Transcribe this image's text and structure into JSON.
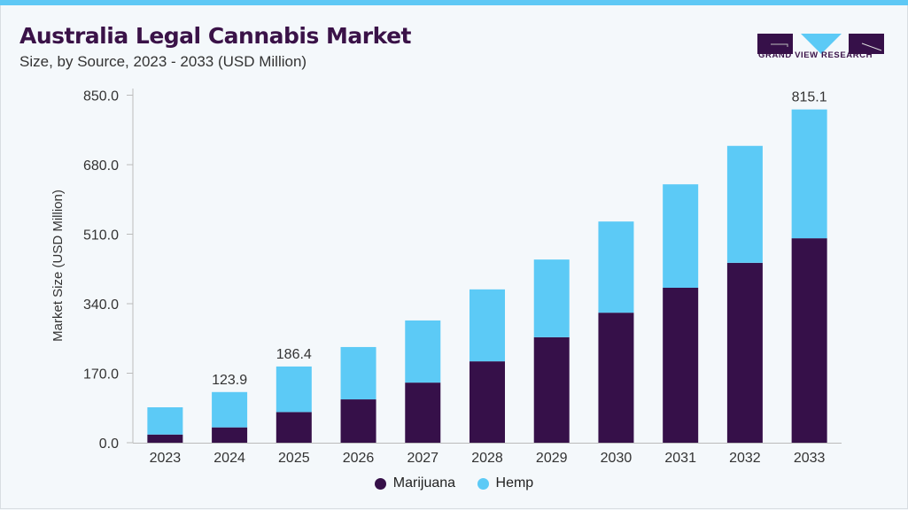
{
  "title": "Australia Legal Cannabis Market",
  "subtitle": "Size, by Source, 2023 - 2033 (USD Million)",
  "logo_text": "GRAND VIEW RESEARCH",
  "colors": {
    "marijuana": "#361049",
    "hemp": "#5ccaf6",
    "title": "#3a1248",
    "accent": "#5ec8f5"
  },
  "chart_data": {
    "type": "bar",
    "stacked": true,
    "categories": [
      "2023",
      "2024",
      "2025",
      "2026",
      "2027",
      "2028",
      "2029",
      "2030",
      "2031",
      "2032",
      "2033"
    ],
    "series": [
      {
        "name": "Marijuana",
        "values": [
          20,
          37.5,
          75,
          106,
          147,
          199,
          258,
          318,
          379,
          440,
          500
        ]
      },
      {
        "name": "Hemp",
        "values": [
          66.6,
          86.4,
          111.4,
          128,
          152,
          176,
          190,
          223,
          253,
          286,
          315.1
        ]
      }
    ],
    "data_labels": {
      "2024": "123.9",
      "2025": "186.4",
      "2033": "815.1"
    },
    "ylabel": "Market Size (USD Million)",
    "xlabel": "",
    "ylim": [
      0,
      850
    ],
    "yticks": [
      "0.0",
      "170.0",
      "340.0",
      "510.0",
      "680.0",
      "850.0"
    ],
    "grid": false,
    "legend": "bottom"
  }
}
